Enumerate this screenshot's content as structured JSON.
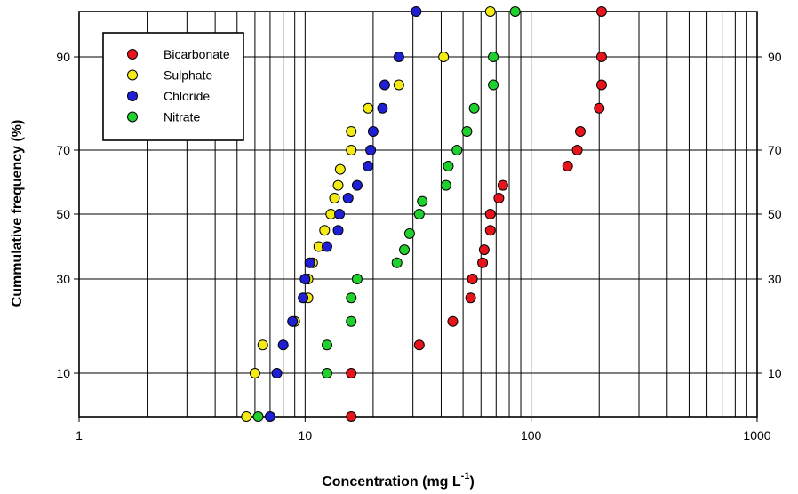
{
  "chart_data": {
    "type": "scatter",
    "title": "",
    "xlabel": "Concentration (mg L",
    "xlabel_sup": "-1",
    "xlabel_close": ")",
    "ylabel": "Cummulative frequency (%)",
    "x_scale": "log",
    "xlim": [
      1,
      1000
    ],
    "x_ticks": [
      "1",
      "10",
      "100",
      "1000"
    ],
    "y_ticks": [
      "10",
      "30",
      "50",
      "70",
      "90"
    ],
    "grid": true,
    "legend_position": "top-left",
    "colors": {
      "Bicarbonate": "#e8141b",
      "Sulphate": "#f5eb14",
      "Chloride": "#1f1fd6",
      "Nitrate": "#1fd12c"
    },
    "series": [
      {
        "name": "Bicarbonate",
        "points": [
          {
            "x": 16,
            "y": 0
          },
          {
            "x": 16,
            "y": 10
          },
          {
            "x": 32,
            "y": 16
          },
          {
            "x": 45,
            "y": 21
          },
          {
            "x": 54,
            "y": 26
          },
          {
            "x": 55,
            "y": 30
          },
          {
            "x": 61,
            "y": 35
          },
          {
            "x": 62,
            "y": 39
          },
          {
            "x": 66,
            "y": 45
          },
          {
            "x": 66,
            "y": 50
          },
          {
            "x": 72,
            "y": 55
          },
          {
            "x": 75,
            "y": 59
          },
          {
            "x": 145,
            "y": 65
          },
          {
            "x": 160,
            "y": 70
          },
          {
            "x": 165,
            "y": 74
          },
          {
            "x": 200,
            "y": 79
          },
          {
            "x": 205,
            "y": 84
          },
          {
            "x": 205,
            "y": 90
          },
          {
            "x": 205,
            "y": 97
          }
        ]
      },
      {
        "name": "Sulphate",
        "points": [
          {
            "x": 5.5,
            "y": 0
          },
          {
            "x": 6,
            "y": 10
          },
          {
            "x": 6.5,
            "y": 16
          },
          {
            "x": 9,
            "y": 21
          },
          {
            "x": 10.3,
            "y": 26
          },
          {
            "x": 10.3,
            "y": 30
          },
          {
            "x": 10.8,
            "y": 35
          },
          {
            "x": 11.5,
            "y": 40
          },
          {
            "x": 12.2,
            "y": 45
          },
          {
            "x": 13,
            "y": 50
          },
          {
            "x": 13.5,
            "y": 55
          },
          {
            "x": 14,
            "y": 59
          },
          {
            "x": 14.3,
            "y": 64
          },
          {
            "x": 16,
            "y": 70
          },
          {
            "x": 16,
            "y": 74
          },
          {
            "x": 19,
            "y": 79
          },
          {
            "x": 26,
            "y": 84
          },
          {
            "x": 41,
            "y": 90
          },
          {
            "x": 66,
            "y": 97
          }
        ]
      },
      {
        "name": "Chloride",
        "points": [
          {
            "x": 7,
            "y": 0
          },
          {
            "x": 7.5,
            "y": 10
          },
          {
            "x": 8,
            "y": 16
          },
          {
            "x": 8.8,
            "y": 21
          },
          {
            "x": 9.8,
            "y": 26
          },
          {
            "x": 10,
            "y": 30
          },
          {
            "x": 10.5,
            "y": 35
          },
          {
            "x": 12.5,
            "y": 40
          },
          {
            "x": 14,
            "y": 45
          },
          {
            "x": 14.2,
            "y": 50
          },
          {
            "x": 15.5,
            "y": 55
          },
          {
            "x": 17,
            "y": 59
          },
          {
            "x": 19,
            "y": 65
          },
          {
            "x": 19.5,
            "y": 70
          },
          {
            "x": 20,
            "y": 74
          },
          {
            "x": 22,
            "y": 79
          },
          {
            "x": 22.5,
            "y": 84
          },
          {
            "x": 26,
            "y": 90
          },
          {
            "x": 31,
            "y": 97
          }
        ]
      },
      {
        "name": "Nitrate",
        "points": [
          {
            "x": 6.2,
            "y": 0
          },
          {
            "x": 12.5,
            "y": 10
          },
          {
            "x": 12.5,
            "y": 16
          },
          {
            "x": 16,
            "y": 21
          },
          {
            "x": 16,
            "y": 26
          },
          {
            "x": 17,
            "y": 30
          },
          {
            "x": 25.5,
            "y": 35
          },
          {
            "x": 27.5,
            "y": 39
          },
          {
            "x": 29,
            "y": 44
          },
          {
            "x": 32,
            "y": 50
          },
          {
            "x": 33,
            "y": 54
          },
          {
            "x": 42,
            "y": 59
          },
          {
            "x": 43,
            "y": 65
          },
          {
            "x": 47,
            "y": 70
          },
          {
            "x": 52,
            "y": 74
          },
          {
            "x": 56,
            "y": 79
          },
          {
            "x": 68,
            "y": 84
          },
          {
            "x": 68,
            "y": 90
          },
          {
            "x": 85,
            "y": 97
          }
        ]
      }
    ]
  }
}
